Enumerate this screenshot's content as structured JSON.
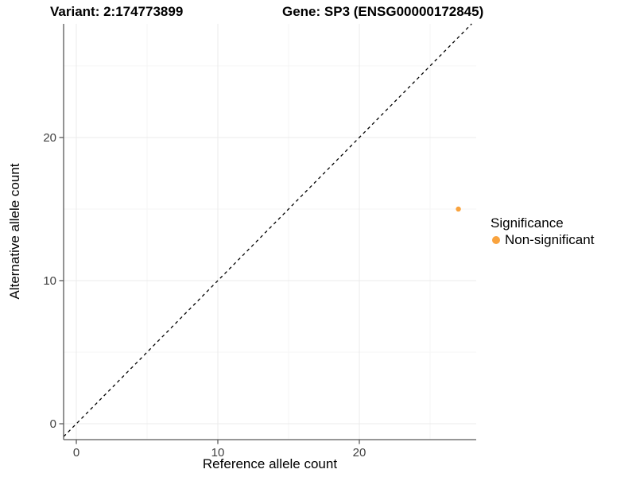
{
  "header": {
    "variant_title": "Variant: 2:174773899",
    "gene_title": "Gene: SP3 (ENSG00000172845)"
  },
  "chart_data": {
    "type": "scatter",
    "titles": [
      "Variant: 2:174773899",
      "Gene: SP3 (ENSG00000172845)"
    ],
    "xlabel": "Reference allele count",
    "ylabel": "Alternative allele count",
    "xlim": [
      -0.9,
      28.26
    ],
    "ylim": [
      -1.11,
      27.94
    ],
    "x_ticks": [
      0,
      10,
      20
    ],
    "y_ticks": [
      0,
      10,
      20
    ],
    "x_minor_ticks": [
      5,
      15,
      25
    ],
    "y_minor_ticks": [
      5,
      15,
      25
    ],
    "grid": true,
    "identity_line": {
      "type": "y=x",
      "style": "dashed",
      "color": "#000000"
    },
    "series": [
      {
        "name": "Non-significant",
        "color": "#F9A33E",
        "points": [
          {
            "x": 27,
            "y": 15
          }
        ]
      }
    ],
    "legend": {
      "title": "Significance",
      "position": "right",
      "entries": [
        {
          "label": "Non-significant",
          "color": "#F9A33E"
        }
      ]
    },
    "colors": {
      "major_grid": "#EBEBEB",
      "minor_grid": "#F5F5F5",
      "axis": "#595959",
      "tick_text": "#404040"
    }
  }
}
